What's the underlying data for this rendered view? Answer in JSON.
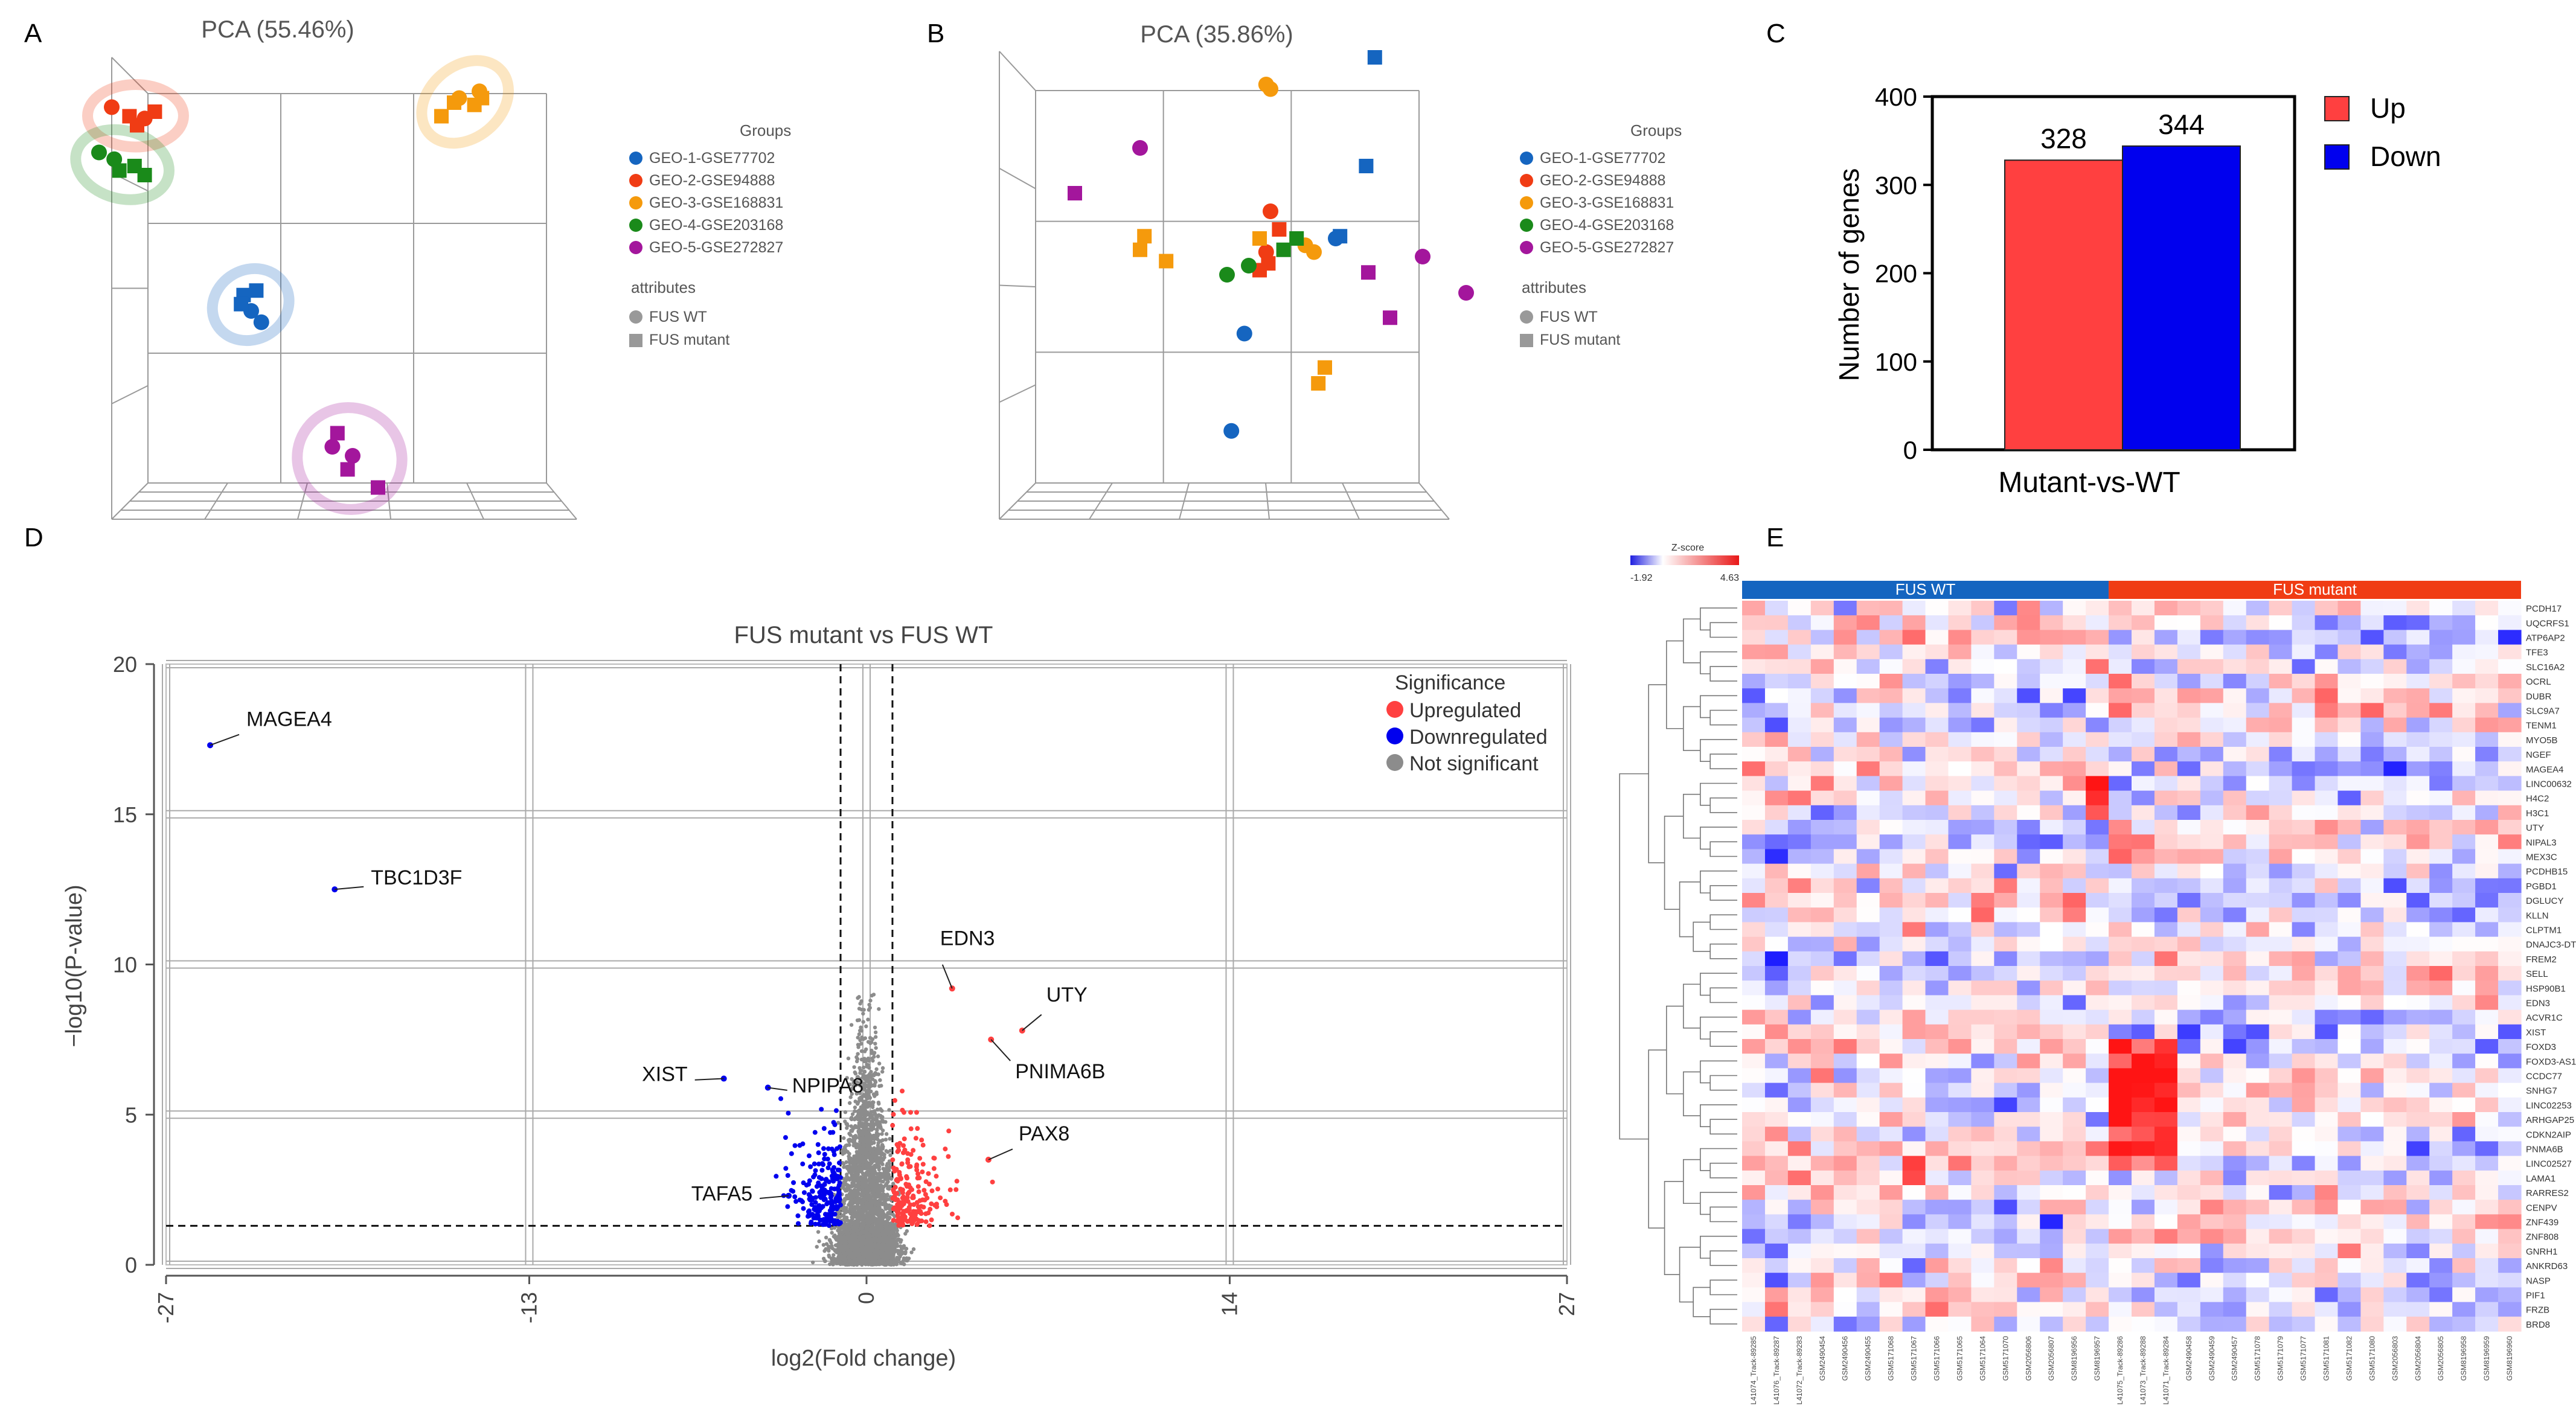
{
  "panel_letters": [
    "A",
    "B",
    "C",
    "D",
    "E"
  ],
  "colors": {
    "geo1": "#1565c0",
    "geo2": "#f03c14",
    "geo3": "#f59a0c",
    "geo4": "#1a8a1a",
    "geo5": "#a3169c",
    "up": "#ff4040",
    "down": "#0000ee",
    "ns": "#8c8c8c"
  },
  "legend_pca": {
    "groups_title": "Groups",
    "groups": [
      "GEO-1-GSE77702",
      "GEO-2-GSE94888",
      "GEO-3-GSE168831",
      "GEO-4-GSE203168",
      "GEO-5-GSE272827"
    ],
    "attributes_title": "attributes",
    "attributes": [
      "FUS WT",
      "FUS mutant"
    ]
  },
  "chart_data": [
    {
      "id": "A",
      "type": "scatter",
      "title": "PCA (55.46%)",
      "series": [
        {
          "name": "GEO-1-GSE77702",
          "wt": [
            [
              -20,
              -12
            ],
            [
              -16,
              -17
            ]
          ],
          "mut": [
            [
              -23,
              -5
            ],
            [
              -24,
              -9
            ],
            [
              -18,
              -3
            ]
          ]
        },
        {
          "name": "GEO-2-GSE94888",
          "wt": [
            [
              -75,
              78
            ],
            [
              -62,
              73
            ]
          ],
          "mut": [
            [
              -68,
              74
            ],
            [
              -65,
              70
            ],
            [
              -58,
              76
            ]
          ]
        },
        {
          "name": "GEO-3-GSE168831",
          "wt": [
            [
              62,
              82
            ],
            [
              70,
              85
            ]
          ],
          "mut": [
            [
              55,
              74
            ],
            [
              60,
              80
            ],
            [
              68,
              79
            ],
            [
              71,
              82
            ]
          ]
        },
        {
          "name": "GEO-4-GSE203168",
          "wt": [
            [
              -80,
              58
            ],
            [
              -74,
              55
            ]
          ],
          "mut": [
            [
              -72,
              50
            ],
            [
              -66,
              52
            ],
            [
              -62,
              48
            ]
          ]
        },
        {
          "name": "GEO-5-GSE272827",
          "wt": [
            [
              12,
              -72
            ],
            [
              20,
              -76
            ]
          ],
          "mut": [
            [
              14,
              -66
            ],
            [
              18,
              -82
            ],
            [
              30,
              -90
            ]
          ]
        }
      ]
    },
    {
      "id": "B",
      "type": "scatter",
      "title": "PCA (35.86%)",
      "series": [
        {
          "name": "GEO-1-GSE77702",
          "wt": [
            [
              -22,
              -22
            ],
            [
              -28,
              -65
            ],
            [
              20,
              20
            ]
          ],
          "mut": [
            [
              38,
              100
            ],
            [
              34,
              52
            ],
            [
              22,
              21
            ]
          ]
        },
        {
          "name": "GEO-2-GSE94888",
          "wt": [
            [
              -10,
              32
            ],
            [
              -12,
              14
            ]
          ],
          "mut": [
            [
              -6,
              24
            ],
            [
              -11,
              9
            ],
            [
              -15,
              6
            ]
          ]
        },
        {
          "name": "GEO-3-GSE168831",
          "wt": [
            [
              -10,
              86
            ],
            [
              -12,
              88
            ],
            [
              10,
              14
            ],
            [
              6,
              17
            ]
          ],
          "mut": [
            [
              -68,
              21
            ],
            [
              -70,
              15
            ],
            [
              -58,
              10
            ],
            [
              15,
              -37
            ],
            [
              12,
              -44
            ],
            [
              -15,
              20
            ]
          ]
        },
        {
          "name": "GEO-4-GSE203168",
          "wt": [
            [
              -30,
              4
            ],
            [
              -20,
              8
            ]
          ],
          "mut": [
            [
              2,
              20
            ],
            [
              -4,
              15
            ]
          ]
        },
        {
          "name": "GEO-5-GSE272827",
          "wt": [
            [
              -70,
              60
            ],
            [
              60,
              12
            ],
            [
              80,
              -4
            ]
          ],
          "mut": [
            [
              -100,
              40
            ],
            [
              35,
              5
            ],
            [
              45,
              -15
            ]
          ]
        }
      ]
    },
    {
      "id": "C",
      "type": "bar",
      "categories": [
        "Up",
        "Down"
      ],
      "values": [
        328,
        344
      ],
      "xlabel": "Mutant-vs-WT",
      "ylabel": "Number of genes",
      "ylim": [
        0,
        400
      ],
      "yticks": [
        0,
        100,
        200,
        300,
        400
      ],
      "legend": [
        "Up",
        "Down"
      ]
    },
    {
      "id": "D",
      "type": "scatter",
      "title": "FUS mutant vs FUS WT",
      "xlabel": "log2(Fold change)",
      "ylabel": "−log10(P-value)",
      "xlim": [
        -27,
        27
      ],
      "ylim": [
        0,
        20
      ],
      "xticks": [
        -27,
        -13,
        0,
        14,
        27
      ],
      "xtick_labels": [
        "-27",
        "-13",
        "0",
        "14",
        "27"
      ],
      "yticks": [
        0,
        5,
        10,
        15,
        20
      ],
      "legend_title": "Significance",
      "legend": [
        "Upregulated",
        "Downregulated",
        "Not significant"
      ],
      "labeled_points": [
        {
          "gene": "MAGEA4",
          "x": -25.3,
          "y": 17.3,
          "group": "down"
        },
        {
          "gene": "TBC1D3F",
          "x": -20.5,
          "y": 12.5,
          "group": "down"
        },
        {
          "gene": "EDN3",
          "x": 3.3,
          "y": 9.2,
          "group": "up"
        },
        {
          "gene": "UTY",
          "x": 6.0,
          "y": 7.8,
          "group": "up"
        },
        {
          "gene": "PNIMA6B",
          "x": 4.8,
          "y": 7.5,
          "group": "up"
        },
        {
          "gene": "XIST",
          "x": -5.5,
          "y": 6.2,
          "group": "down"
        },
        {
          "gene": "NPIPA8",
          "x": -3.8,
          "y": 5.9,
          "group": "down"
        },
        {
          "gene": "PAX8",
          "x": 4.7,
          "y": 3.5,
          "group": "up"
        },
        {
          "gene": "TAFA5",
          "x": -3.0,
          "y": 2.3,
          "group": "down"
        }
      ],
      "thresholds": {
        "log2fc": [
          -1,
          1
        ],
        "neglog10p": 1.3
      }
    },
    {
      "id": "E",
      "type": "heatmap",
      "colorbar_title": "Z-score",
      "colorbar_range": [
        "-1.92",
        "4.63"
      ],
      "column_groups": [
        {
          "name": "FUS WT",
          "count": 16
        },
        {
          "name": "FUS mutant",
          "count": 18
        }
      ],
      "genes": [
        "PCDH17",
        "UQCRFS1",
        "ATP6AP2",
        "TFE3",
        "SLC16A2",
        "OCRL",
        "DUBR",
        "SLC9A7",
        "TENM1",
        "MYO5B",
        "NGEF",
        "MAGEA4",
        "LINC00632",
        "H4C2",
        "H3C1",
        "UTY",
        "NIPAL3",
        "MEX3C",
        "PCDHB15",
        "PGBD1",
        "DGLUCY",
        "KLLN",
        "CLPTM1",
        "DNAJC3-DT",
        "FREM2",
        "SELL",
        "HSP90B1",
        "EDN3",
        "ACVR1C",
        "XIST",
        "FOXD3",
        "FOXD3-AS1",
        "CCDC77",
        "SNHG7",
        "LINC02253",
        "ARHGAP25",
        "CDKN2AIP",
        "PNMA6B",
        "LINC02527",
        "LAMA1",
        "RARRES2",
        "CENPV",
        "ZNF439",
        "ZNF808",
        "GNRH1",
        "ANKRD63",
        "NASP",
        "PIF1",
        "FRZB",
        "BRD8"
      ],
      "samples": [
        "L41074_Track-89285",
        "L41076_Track-89287",
        "L41072_Track-89283",
        "GSM2490454",
        "GSM2490456",
        "GSM2490455",
        "GSM5171068",
        "GSM5171067",
        "GSM5171066",
        "GSM5171065",
        "GSM5171064",
        "GSM5171070",
        "GSM2056806",
        "GSM2056807",
        "GSM8196956",
        "GSM8196957",
        "L41075_Track-89286",
        "L41073_Track-89288",
        "L41071_Track-89284",
        "GSM2490458",
        "GSM2490459",
        "GSM2490457",
        "GSM5171078",
        "GSM5171079",
        "GSM5171077",
        "GSM5171081",
        "GSM5171082",
        "GSM5171080",
        "GSM2056803",
        "GSM2056804",
        "GSM2056805",
        "GSM8196958",
        "GSM8196959",
        "GSM8196960"
      ]
    }
  ]
}
